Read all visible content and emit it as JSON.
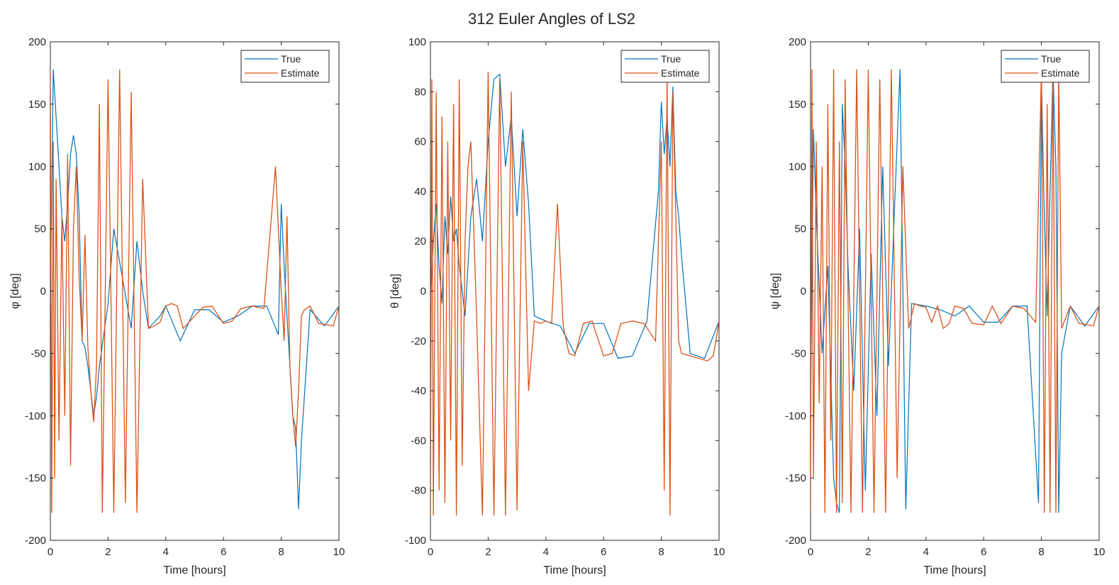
{
  "figure": {
    "title": "312 Euler Angles of LS2"
  },
  "colors": {
    "true": "#0072BD",
    "estimate": "#D95319",
    "axis": "#262626",
    "background": "#ffffff"
  },
  "chart_data": [
    {
      "type": "line",
      "title": "",
      "xlabel": "Time [hours]",
      "ylabel": "φ [deg]",
      "xlim": [
        0,
        10
      ],
      "ylim": [
        -200,
        200
      ],
      "xticks": [
        "0",
        "2",
        "4",
        "6",
        "8",
        "10"
      ],
      "yticks": [
        "200",
        "150",
        "100",
        "50",
        "0",
        "-50",
        "-100",
        "-150",
        "-200"
      ],
      "legend": {
        "position": "top-right",
        "entries": [
          "True",
          "Estimate"
        ]
      },
      "grid": false,
      "series": [
        {
          "name": "True",
          "color": "#0072BD",
          "x": [
            0,
            0.05,
            0.1,
            0.2,
            0.3,
            0.4,
            0.5,
            0.6,
            0.7,
            0.8,
            0.9,
            1.0,
            1.1,
            1.2,
            1.3,
            1.4,
            1.5,
            1.6,
            1.7,
            2.0,
            2.2,
            2.5,
            2.8,
            3.0,
            3.2,
            3.4,
            3.6,
            3.8,
            4.0,
            4.5,
            5.0,
            5.5,
            6.0,
            6.5,
            7.0,
            7.5,
            7.9,
            8.0,
            8.1,
            8.2,
            8.3,
            8.4,
            8.5,
            8.6,
            8.7,
            9.0,
            9.5,
            10.0
          ],
          "y": [
            -10,
            80,
            178,
            140,
            100,
            60,
            40,
            70,
            110,
            125,
            110,
            60,
            -40,
            -45,
            -60,
            -80,
            -100,
            -85,
            -60,
            -10,
            50,
            10,
            -30,
            40,
            0,
            -30,
            -25,
            -20,
            -12,
            -40,
            -15,
            -15,
            -25,
            -20,
            -12,
            -12,
            -35,
            70,
            20,
            -20,
            -60,
            -100,
            -110,
            -175,
            -120,
            -15,
            -28,
            -12
          ]
        },
        {
          "name": "Estimate",
          "color": "#D95319",
          "x": [
            0,
            0.05,
            0.1,
            0.15,
            0.2,
            0.3,
            0.4,
            0.5,
            0.6,
            0.7,
            0.8,
            0.9,
            1.0,
            1.1,
            1.2,
            1.3,
            1.4,
            1.5,
            1.6,
            1.7,
            1.8,
            2.0,
            2.2,
            2.4,
            2.6,
            2.8,
            3.0,
            3.2,
            3.4,
            3.6,
            3.8,
            4.0,
            4.2,
            4.4,
            4.6,
            4.8,
            5.0,
            5.3,
            5.6,
            6.0,
            6.3,
            6.6,
            7.0,
            7.4,
            7.8,
            8.0,
            8.1,
            8.2,
            8.3,
            8.4,
            8.5,
            8.6,
            8.7,
            8.8,
            9.0,
            9.3,
            9.6,
            9.8,
            10.0
          ],
          "y": [
            178,
            -178,
            120,
            -150,
            90,
            -120,
            60,
            -100,
            110,
            -140,
            50,
            100,
            10,
            -40,
            45,
            -45,
            -80,
            -105,
            -60,
            150,
            -178,
            170,
            -178,
            178,
            -170,
            160,
            -178,
            90,
            -30,
            -28,
            -25,
            -12,
            -10,
            -12,
            -30,
            -25,
            -20,
            -13,
            -12,
            -26,
            -24,
            -14,
            -12,
            -14,
            100,
            0,
            -40,
            60,
            -60,
            -100,
            -125,
            -80,
            -20,
            -15,
            -12,
            -26,
            -27,
            -28,
            -12
          ]
        }
      ]
    },
    {
      "type": "line",
      "title": "",
      "xlabel": "Time [hours]",
      "ylabel": "θ [deg]",
      "xlim": [
        0,
        10
      ],
      "ylim": [
        -100,
        100
      ],
      "xticks": [
        "0",
        "2",
        "4",
        "6",
        "8",
        "10"
      ],
      "yticks": [
        "100",
        "80",
        "60",
        "40",
        "20",
        "0",
        "-20",
        "-40",
        "-60",
        "-80",
        "-100"
      ],
      "legend": {
        "position": "top-right",
        "entries": [
          "True",
          "Estimate"
        ]
      },
      "grid": false,
      "series": [
        {
          "name": "True",
          "color": "#0072BD",
          "x": [
            0,
            0.1,
            0.2,
            0.3,
            0.4,
            0.5,
            0.6,
            0.7,
            0.8,
            0.9,
            1.0,
            1.2,
            1.4,
            1.6,
            1.8,
            2.0,
            2.2,
            2.4,
            2.6,
            2.8,
            3.0,
            3.2,
            3.4,
            3.6,
            4.0,
            4.5,
            5.0,
            5.5,
            6.0,
            6.5,
            7.0,
            7.5,
            7.9,
            8.0,
            8.1,
            8.2,
            8.3,
            8.4,
            8.5,
            8.6,
            8.7,
            9.0,
            9.5,
            10.0
          ],
          "y": [
            -5,
            20,
            35,
            10,
            -5,
            30,
            15,
            38,
            20,
            25,
            10,
            -10,
            30,
            45,
            20,
            60,
            85,
            87,
            50,
            70,
            30,
            65,
            35,
            -10,
            -12,
            -14,
            -25,
            -13,
            -13,
            -27,
            -26,
            -12,
            40,
            76,
            55,
            70,
            50,
            82,
            40,
            30,
            14,
            -25,
            -27,
            -12
          ]
        },
        {
          "name": "Estimate",
          "color": "#D95319",
          "x": [
            0,
            0.05,
            0.1,
            0.2,
            0.3,
            0.4,
            0.5,
            0.6,
            0.7,
            0.8,
            0.9,
            1.0,
            1.1,
            1.2,
            1.3,
            1.4,
            1.6,
            1.8,
            2.0,
            2.2,
            2.4,
            2.6,
            2.8,
            3.0,
            3.2,
            3.4,
            3.6,
            3.8,
            4.0,
            4.2,
            4.4,
            4.6,
            4.8,
            5.0,
            5.3,
            5.6,
            6.0,
            6.3,
            6.6,
            7.0,
            7.4,
            7.8,
            8.0,
            8.1,
            8.2,
            8.3,
            8.4,
            8.5,
            8.6,
            8.7,
            9.0,
            9.3,
            9.6,
            9.8,
            10.0
          ],
          "y": [
            -90,
            85,
            -90,
            80,
            -80,
            70,
            -85,
            60,
            -60,
            75,
            -90,
            85,
            -70,
            20,
            50,
            60,
            -10,
            -90,
            88,
            -90,
            85,
            -90,
            80,
            -88,
            60,
            -40,
            -12,
            -13,
            -12,
            -13,
            35,
            -14,
            -25,
            -26,
            -13,
            -12,
            -26,
            -25,
            -13,
            -12,
            -13,
            -20,
            60,
            -80,
            88,
            -90,
            80,
            30,
            -20,
            -25,
            -26,
            -27,
            -28,
            -26,
            -12
          ]
        }
      ]
    },
    {
      "type": "line",
      "title": "",
      "xlabel": "Time [hours]",
      "ylabel": "ψ [deg]",
      "xlim": [
        0,
        10
      ],
      "ylim": [
        -200,
        200
      ],
      "xticks": [
        "0",
        "2",
        "4",
        "6",
        "8",
        "10"
      ],
      "yticks": [
        "200",
        "150",
        "100",
        "50",
        "0",
        "-50",
        "-100",
        "-150",
        "-200"
      ],
      "legend": {
        "position": "top-right",
        "entries": [
          "True",
          "Estimate"
        ]
      },
      "grid": false,
      "series": [
        {
          "name": "True",
          "color": "#0072BD",
          "x": [
            0,
            0.1,
            0.2,
            0.4,
            0.6,
            0.8,
            0.9,
            1.0,
            1.1,
            1.2,
            1.3,
            1.5,
            1.7,
            1.9,
            2.1,
            2.3,
            2.5,
            2.7,
            2.9,
            3.1,
            3.3,
            3.5,
            4.0,
            4.5,
            5.0,
            5.5,
            6.0,
            6.5,
            7.0,
            7.5,
            7.9,
            8.0,
            8.1,
            8.2,
            8.3,
            8.4,
            8.5,
            8.6,
            8.7,
            9.0,
            9.5,
            10.0
          ],
          "y": [
            -100,
            130,
            60,
            -50,
            20,
            -150,
            -170,
            -178,
            150,
            100,
            20,
            -80,
            50,
            -160,
            30,
            -100,
            100,
            -60,
            60,
            178,
            -175,
            -10,
            -12,
            -15,
            -20,
            -12,
            -25,
            -25,
            -12,
            -12,
            -170,
            170,
            60,
            -20,
            80,
            178,
            100,
            -178,
            -50,
            -12,
            -28,
            -12
          ]
        },
        {
          "name": "Estimate",
          "color": "#D95319",
          "x": [
            0,
            0.05,
            0.1,
            0.2,
            0.3,
            0.4,
            0.5,
            0.6,
            0.7,
            0.8,
            0.9,
            1.0,
            1.1,
            1.2,
            1.4,
            1.6,
            1.8,
            2.0,
            2.2,
            2.4,
            2.6,
            2.8,
            3.0,
            3.2,
            3.4,
            3.6,
            3.8,
            4.0,
            4.2,
            4.4,
            4.6,
            4.8,
            5.0,
            5.3,
            5.6,
            6.0,
            6.3,
            6.6,
            7.0,
            7.4,
            7.8,
            8.0,
            8.1,
            8.2,
            8.3,
            8.4,
            8.5,
            8.6,
            8.7,
            9.0,
            9.3,
            9.6,
            9.8,
            10.0
          ],
          "y": [
            -178,
            178,
            -150,
            120,
            -90,
            100,
            -178,
            150,
            -120,
            178,
            -178,
            120,
            -170,
            170,
            -178,
            178,
            -178,
            178,
            -178,
            170,
            -178,
            178,
            -150,
            100,
            -30,
            -10,
            -12,
            -13,
            -25,
            -12,
            -30,
            -26,
            -12,
            -14,
            -26,
            -27,
            -12,
            -26,
            -12,
            -14,
            -25,
            178,
            -178,
            150,
            -178,
            178,
            -178,
            178,
            -30,
            -12,
            -26,
            -27,
            -28,
            -12
          ]
        }
      ]
    }
  ]
}
